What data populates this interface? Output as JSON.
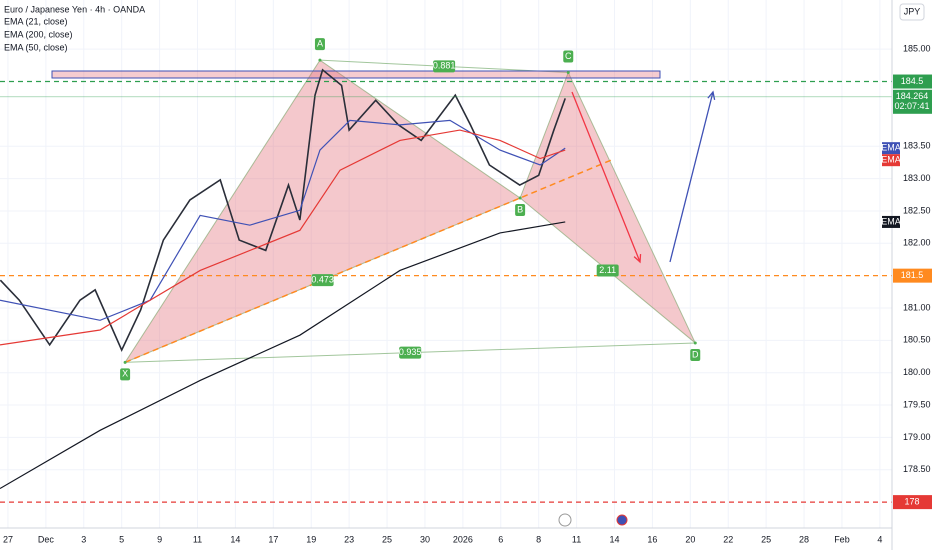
{
  "chart_data": {
    "type": "line",
    "title": "Euro / Japanese Yen · 4h · OANDA",
    "currency": "JPY",
    "xlim": [
      -0.21,
      23.32
    ],
    "ylim": [
      177.6,
      185.76
    ],
    "xticks": [
      {
        "value": 0,
        "label": "27"
      },
      {
        "value": 1,
        "label": "Dec"
      },
      {
        "value": 2,
        "label": "3"
      },
      {
        "value": 3,
        "label": "5"
      },
      {
        "value": 4,
        "label": "9"
      },
      {
        "value": 5,
        "label": "11"
      },
      {
        "value": 6,
        "label": "14"
      },
      {
        "value": 7,
        "label": "17"
      },
      {
        "value": 8,
        "label": "19"
      },
      {
        "value": 9,
        "label": "23"
      },
      {
        "value": 10,
        "label": "25"
      },
      {
        "value": 11,
        "label": "30"
      },
      {
        "value": 12,
        "label": "2026"
      },
      {
        "value": 13,
        "label": "6"
      },
      {
        "value": 14,
        "label": "8"
      },
      {
        "value": 15,
        "label": "11"
      },
      {
        "value": 16,
        "label": "14"
      },
      {
        "value": 17,
        "label": "16"
      },
      {
        "value": 18,
        "label": "20"
      },
      {
        "value": 19,
        "label": "22"
      },
      {
        "value": 20,
        "label": "25"
      },
      {
        "value": 21,
        "label": "28"
      },
      {
        "value": 22,
        "label": "Feb"
      },
      {
        "value": 23,
        "label": "4"
      }
    ],
    "yticks": [
      {
        "value": 178.5,
        "label": "178.50"
      },
      {
        "value": 179,
        "label": "179.00"
      },
      {
        "value": 179.5,
        "label": "179.50"
      },
      {
        "value": 180,
        "label": "180.00"
      },
      {
        "value": 180.5,
        "label": "180.50"
      },
      {
        "value": 181,
        "label": "181.00"
      },
      {
        "value": 182,
        "label": "182.00"
      },
      {
        "value": 182.5,
        "label": "182.50"
      },
      {
        "value": 183,
        "label": "183.00"
      },
      {
        "value": 183.5,
        "label": "183.50"
      },
      {
        "value": 185,
        "label": "185.00"
      }
    ],
    "grid": true,
    "series": [
      {
        "color": "#2a2e39",
        "x": [
          -0.2,
          0.3,
          1.1,
          1.9,
          2.3,
          3.0,
          3.5,
          4.1,
          4.8,
          5.6,
          6.1,
          6.8,
          7.4,
          7.7,
          8.1,
          8.3,
          8.8,
          9.0,
          9.7,
          10.3,
          10.9,
          11.8,
          12.2,
          12.7,
          13.5,
          14.0,
          14.4,
          14.7
        ],
        "values": [
          181.43,
          181.12,
          180.43,
          181.12,
          181.28,
          180.35,
          180.97,
          182.05,
          182.67,
          182.98,
          182.05,
          181.89,
          182.9,
          182.36,
          184.29,
          184.68,
          184.44,
          183.75,
          184.21,
          183.83,
          183.59,
          184.29,
          183.83,
          183.21,
          182.9,
          183.05,
          183.75,
          184.24
        ]
      },
      {
        "name": "EMA (21, close)",
        "tag": "EMA",
        "color": "#3f51b5",
        "x": [
          -0.21,
          2.43,
          3.75,
          5.07,
          6.38,
          7.7,
          8.23,
          9.02,
          10.34,
          11.66,
          12.98,
          14.04,
          14.7
        ],
        "values": [
          181.12,
          180.81,
          181.12,
          182.43,
          182.28,
          182.51,
          183.44,
          183.9,
          183.83,
          183.9,
          183.44,
          183.21,
          183.47
        ]
      },
      {
        "name": "EMA (200, close)",
        "tag": "EMA",
        "color": "#131722",
        "x": [
          -0.21,
          2.43,
          5.07,
          7.7,
          10.34,
          12.98,
          14.7
        ],
        "values": [
          178.21,
          179.11,
          179.88,
          180.58,
          181.58,
          182.16,
          182.33
        ]
      },
      {
        "name": "EMA (50, close)",
        "tag": "EMA",
        "color": "#e53935",
        "x": [
          -0.21,
          2.43,
          5.07,
          7.7,
          8.76,
          10.34,
          11.92,
          12.98,
          14.04,
          14.7
        ],
        "values": [
          180.43,
          180.66,
          181.58,
          182.2,
          183.13,
          183.59,
          183.75,
          183.59,
          183.31,
          183.44
        ]
      }
    ],
    "last_price": {
      "value": 184.264,
      "countdown": "02:07:41"
    },
    "levels": [
      {
        "value": 184.5,
        "color": "#2e9e4f"
      },
      {
        "value": 181.5,
        "color": "#ff8a1f"
      },
      {
        "value": 178,
        "color": "#e53935"
      }
    ],
    "pattern": {
      "points": [
        {
          "label": "X",
          "x": 3.09,
          "y": 180.16
        },
        {
          "label": "A",
          "x": 8.23,
          "y": 184.83
        },
        {
          "label": "B",
          "x": 13.51,
          "y": 182.7
        },
        {
          "label": "C",
          "x": 14.78,
          "y": 184.64
        },
        {
          "label": "D",
          "x": 18.13,
          "y": 180.46
        }
      ],
      "ratios": [
        0.881,
        0.473,
        2.11,
        0.935
      ]
    }
  }
}
